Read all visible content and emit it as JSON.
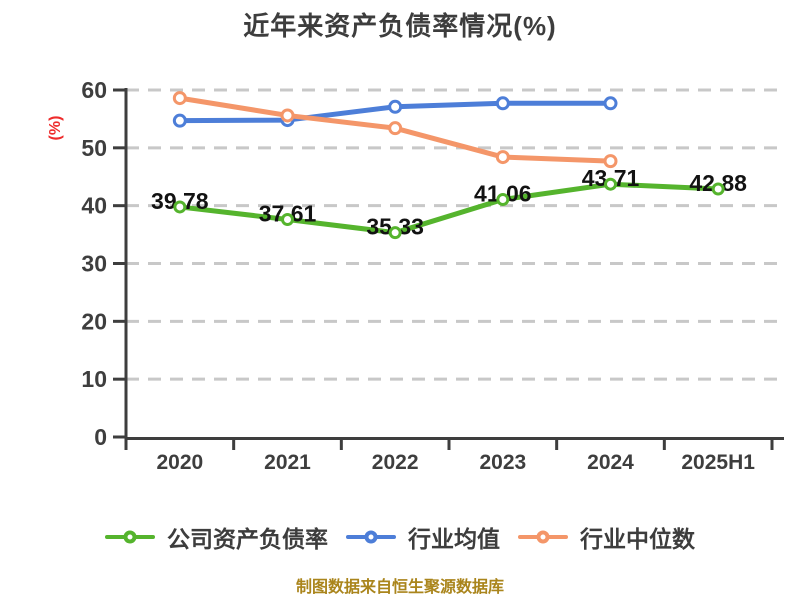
{
  "title": "近年来资产负债率情况(%)",
  "footer": "制图数据来自恒生聚源数据库",
  "colors": {
    "background": "#ffffff",
    "title_text": "#3d3d3d",
    "axis": "#3e3e3e",
    "gridline": "#c8c8c8",
    "point_label": "#121212",
    "y_unit_label": "#ee2b2b",
    "footer_text": "#aa851c",
    "series_company": "#55b42d",
    "series_mean": "#4d7ed8",
    "series_median": "#f49669"
  },
  "chart_data": {
    "type": "line",
    "title": "近年来资产负债率情况(%)",
    "xlabel": "",
    "ylabel": "(%)",
    "ylim": [
      0,
      60
    ],
    "ytick_interval": 10,
    "ytick_labels": [
      "0",
      "10",
      "20",
      "30",
      "40",
      "50",
      "60"
    ],
    "grid": "horizontal-dashed",
    "legend_position": "bottom",
    "marker_style": "circle-white-fill",
    "categories": [
      "2020",
      "2021",
      "2022",
      "2023",
      "2024",
      "2025H1"
    ],
    "series": [
      {
        "name": "公司资产负债率",
        "color": "#55b42d",
        "labels_visible": true,
        "values": [
          39.78,
          37.61,
          35.33,
          41.06,
          43.71,
          42.88
        ],
        "value_labels": [
          "39.78",
          "37.61",
          "35.33",
          "41.06",
          "43.71",
          "42.88"
        ]
      },
      {
        "name": "行业均值",
        "color": "#4d7ed8",
        "labels_visible": false,
        "values": [
          54.7,
          54.8,
          57.1,
          57.7,
          57.7,
          null
        ]
      },
      {
        "name": "行业中位数",
        "color": "#f49669",
        "labels_visible": false,
        "values": [
          58.6,
          55.6,
          53.4,
          48.4,
          47.7,
          null
        ]
      }
    ]
  }
}
